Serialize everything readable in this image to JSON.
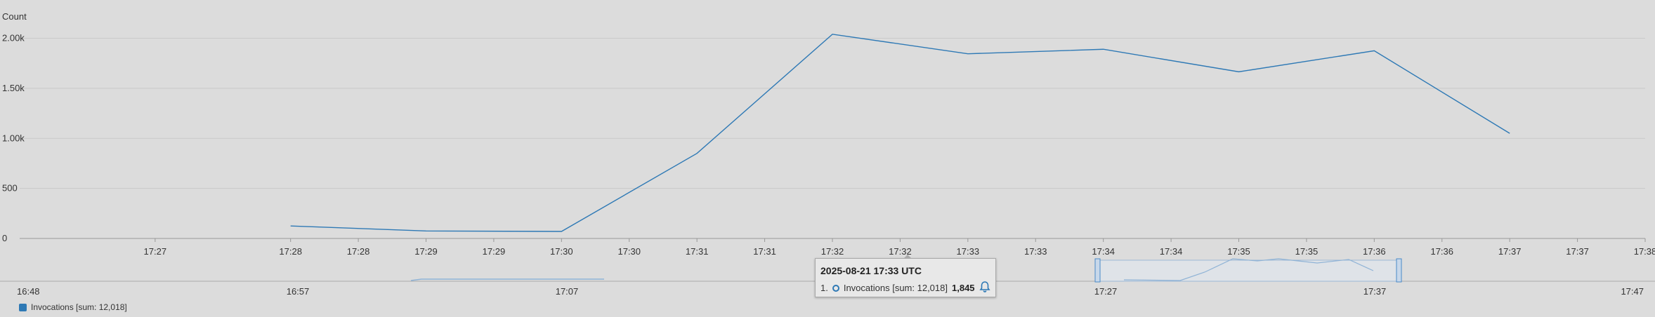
{
  "chart_data": {
    "type": "line",
    "ylabel": "Count",
    "ylim": [
      0,
      2200
    ],
    "yticks": [
      {
        "value": 0,
        "label": "0"
      },
      {
        "value": 500,
        "label": "500"
      },
      {
        "value": 1000,
        "label": "1.00k"
      },
      {
        "value": 1500,
        "label": "1.50k"
      },
      {
        "value": 2000,
        "label": "2.00k"
      }
    ],
    "xlim": [
      "17:26:00",
      "17:38:00"
    ],
    "xticks": [
      {
        "time": "17:27:00",
        "label": "17:27"
      },
      {
        "time": "17:28:00",
        "label": "17:28"
      },
      {
        "time": "17:28:30",
        "label": "17:28"
      },
      {
        "time": "17:29:00",
        "label": "17:29"
      },
      {
        "time": "17:29:30",
        "label": "17:29"
      },
      {
        "time": "17:30:00",
        "label": "17:30"
      },
      {
        "time": "17:30:30",
        "label": "17:30"
      },
      {
        "time": "17:31:00",
        "label": "17:31"
      },
      {
        "time": "17:31:30",
        "label": "17:31"
      },
      {
        "time": "17:32:00",
        "label": "17:32"
      },
      {
        "time": "17:32:30",
        "label": "17:32"
      },
      {
        "time": "17:33:00",
        "label": "17:33"
      },
      {
        "time": "17:33:30",
        "label": "17:33"
      },
      {
        "time": "17:34:00",
        "label": "17:34"
      },
      {
        "time": "17:34:30",
        "label": "17:34"
      },
      {
        "time": "17:35:00",
        "label": "17:35"
      },
      {
        "time": "17:35:30",
        "label": "17:35"
      },
      {
        "time": "17:36:00",
        "label": "17:36"
      },
      {
        "time": "17:36:30",
        "label": "17:36"
      },
      {
        "time": "17:37:00",
        "label": "17:37"
      },
      {
        "time": "17:37:30",
        "label": "17:37"
      },
      {
        "time": "17:38:00",
        "label": "17:38"
      }
    ],
    "series": [
      {
        "name": "Invocations [sum: 12,018]",
        "color": "#2e79b5",
        "points": [
          {
            "x": "17:28",
            "y": 125
          },
          {
            "x": "17:29",
            "y": 75
          },
          {
            "x": "17:30",
            "y": 70
          },
          {
            "x": "17:31",
            "y": 850
          },
          {
            "x": "17:32",
            "y": 2040
          },
          {
            "x": "17:33",
            "y": 1845
          },
          {
            "x": "17:34",
            "y": 1890
          },
          {
            "x": "17:35",
            "y": 1665
          },
          {
            "x": "17:36",
            "y": 1875
          },
          {
            "x": "17:37",
            "y": 1050
          }
        ]
      }
    ],
    "grid": true,
    "legend": "bottom-left",
    "navigator": {
      "labels": [
        "16:48",
        "16:57",
        "17:07",
        "17:27",
        "17:37",
        "17:47"
      ]
    }
  },
  "tooltip": {
    "title": "2025-08-21 17:33 UTC",
    "index": "1.",
    "series_label": "Invocations [sum: 12,018]",
    "value": "1,845"
  },
  "legend": {
    "label": "Invocations [sum: 12,018]",
    "color": "#2e79b5"
  }
}
